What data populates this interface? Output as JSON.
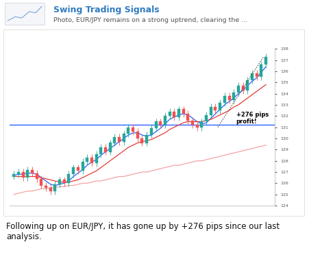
{
  "post": {
    "channel": "Swing Trading Signals",
    "preview": "Photo, EUR/JPY remains on a strong uptrend, clearing the ...",
    "caption": "Following up on EUR/JPY, it has gone up by +276 pips since our last analysis."
  },
  "chart_data": {
    "type": "candlestick",
    "categories": [
      null,
      null,
      null,
      null,
      null,
      null,
      null,
      null,
      null,
      null,
      null,
      null,
      null,
      null,
      null,
      null,
      null,
      null,
      null,
      null,
      null,
      null,
      null,
      null,
      null,
      null,
      null,
      null,
      null,
      null,
      null,
      null,
      null,
      null,
      null,
      null,
      null,
      null,
      null,
      null,
      null,
      null,
      null,
      null,
      null,
      null,
      null,
      null,
      null,
      null,
      null,
      null,
      null,
      null,
      null,
      null
    ],
    "open": [
      126.6,
      126.8,
      127.0,
      126.5,
      127.2,
      126.9,
      126.4,
      125.8,
      125.6,
      125.3,
      125.9,
      126.3,
      126.0,
      126.8,
      127.4,
      127.1,
      127.9,
      128.3,
      127.8,
      128.6,
      129.2,
      128.8,
      129.6,
      130.1,
      129.7,
      130.4,
      131.0,
      130.6,
      130.0,
      129.6,
      130.3,
      130.9,
      131.5,
      131.2,
      132.0,
      132.4,
      131.9,
      132.6,
      132.2,
      131.6,
      131.2,
      131.0,
      131.5,
      132.1,
      132.8,
      132.5,
      133.2,
      133.8,
      133.4,
      134.1,
      134.7,
      134.3,
      135.2,
      135.8,
      135.5,
      136.6
    ],
    "high": [
      127.1,
      127.3,
      127.3,
      127.5,
      127.5,
      127.2,
      126.7,
      126.1,
      125.9,
      126.2,
      126.6,
      126.6,
      127.1,
      127.7,
      127.7,
      128.2,
      128.6,
      128.6,
      128.9,
      129.5,
      129.5,
      129.9,
      130.4,
      130.4,
      130.7,
      131.3,
      131.3,
      130.9,
      130.3,
      130.6,
      131.2,
      131.8,
      131.8,
      132.3,
      132.7,
      132.7,
      132.9,
      132.9,
      132.5,
      131.9,
      131.5,
      131.8,
      132.4,
      133.1,
      133.1,
      133.5,
      134.1,
      134.1,
      134.4,
      135.0,
      135.0,
      135.5,
      136.1,
      136.1,
      136.9,
      137.6
    ],
    "low": [
      126.3,
      126.5,
      126.2,
      126.2,
      126.6,
      126.1,
      125.5,
      125.3,
      125.0,
      125.0,
      125.6,
      125.7,
      125.7,
      126.5,
      126.8,
      126.8,
      127.6,
      127.5,
      127.5,
      128.3,
      128.5,
      128.5,
      129.3,
      129.4,
      129.4,
      130.1,
      130.3,
      129.7,
      129.3,
      129.3,
      130.0,
      130.6,
      130.9,
      130.9,
      131.7,
      131.6,
      131.6,
      131.9,
      131.3,
      130.9,
      130.7,
      130.7,
      131.2,
      131.8,
      132.2,
      132.2,
      132.9,
      133.1,
      133.1,
      133.8,
      134.0,
      134.0,
      134.9,
      135.2,
      135.2,
      136.3
    ],
    "close": [
      126.8,
      127.0,
      126.5,
      127.2,
      126.9,
      126.4,
      125.8,
      125.6,
      125.3,
      125.9,
      126.3,
      126.0,
      126.8,
      127.4,
      127.1,
      127.9,
      128.3,
      127.8,
      128.6,
      129.2,
      128.8,
      129.6,
      130.1,
      129.7,
      130.4,
      131.0,
      130.6,
      130.0,
      129.6,
      130.3,
      130.9,
      131.5,
      131.2,
      132.0,
      132.4,
      131.9,
      132.6,
      132.2,
      131.6,
      131.2,
      131.0,
      131.5,
      132.1,
      132.8,
      132.5,
      133.2,
      133.8,
      133.4,
      134.1,
      134.7,
      134.3,
      135.2,
      135.8,
      135.5,
      136.6,
      137.3
    ],
    "series": [
      {
        "type": "line",
        "color": "#2962ff",
        "values": [
          126.7,
          126.8,
          126.8,
          126.9,
          126.9,
          126.8,
          126.5,
          126.2,
          125.9,
          125.8,
          125.9,
          126.0,
          126.2,
          126.6,
          126.9,
          127.2,
          127.6,
          127.9,
          128.1,
          128.5,
          128.8,
          129.1,
          129.4,
          129.7,
          130.0,
          130.3,
          130.5,
          130.5,
          130.3,
          130.2,
          130.3,
          130.6,
          130.9,
          131.3,
          131.7,
          131.9,
          132.1,
          132.2,
          132.1,
          131.8,
          131.5,
          131.3,
          131.4,
          131.8,
          132.2,
          132.6,
          133.0,
          133.3,
          133.6,
          134.0,
          134.3,
          134.7,
          135.1,
          135.4,
          135.9,
          136.4
        ]
      },
      {
        "type": "line",
        "color": "#e53935",
        "values": [
          126.6,
          126.6,
          126.6,
          126.6,
          126.6,
          126.6,
          126.5,
          126.4,
          126.3,
          126.2,
          126.1,
          126.1,
          126.1,
          126.2,
          126.3,
          126.5,
          126.7,
          126.9,
          127.1,
          127.4,
          127.7,
          128.0,
          128.3,
          128.6,
          128.9,
          129.2,
          129.4,
          129.6,
          129.7,
          129.8,
          129.9,
          130.1,
          130.3,
          130.5,
          130.8,
          131.0,
          131.2,
          131.4,
          131.5,
          131.5,
          131.5,
          131.5,
          131.6,
          131.7,
          131.9,
          132.1,
          132.3,
          132.5,
          132.8,
          133.0,
          133.3,
          133.6,
          133.9,
          134.2,
          134.5,
          134.8
        ]
      },
      {
        "type": "line",
        "color": "#f4a3a3",
        "values": [
          125.0,
          125.1,
          125.2,
          125.3,
          125.3,
          125.4,
          125.5,
          125.5,
          125.6,
          125.6,
          125.7,
          125.7,
          125.8,
          125.8,
          125.9,
          126.0,
          126.0,
          126.1,
          126.2,
          126.2,
          126.3,
          126.4,
          126.5,
          126.6,
          126.6,
          126.7,
          126.8,
          126.9,
          127.0,
          127.0,
          127.1,
          127.2,
          127.3,
          127.4,
          127.5,
          127.6,
          127.6,
          127.7,
          127.8,
          127.9,
          128.0,
          128.0,
          128.1,
          128.2,
          128.3,
          128.4,
          128.5,
          128.6,
          128.7,
          128.8,
          128.9,
          129.0,
          129.1,
          129.2,
          129.3,
          129.4
        ]
      }
    ],
    "reference_line": {
      "value": 131.2,
      "color": "#2962ff"
    },
    "annotations": [
      {
        "text": "+276 pips\nprofit!"
      }
    ],
    "ylim": [
      124,
      138
    ],
    "yticks": [
      124,
      125,
      126,
      127,
      128,
      129,
      130,
      131,
      132,
      133,
      134,
      135,
      136,
      137,
      138
    ],
    "grid": false,
    "tick_labels": "y"
  }
}
